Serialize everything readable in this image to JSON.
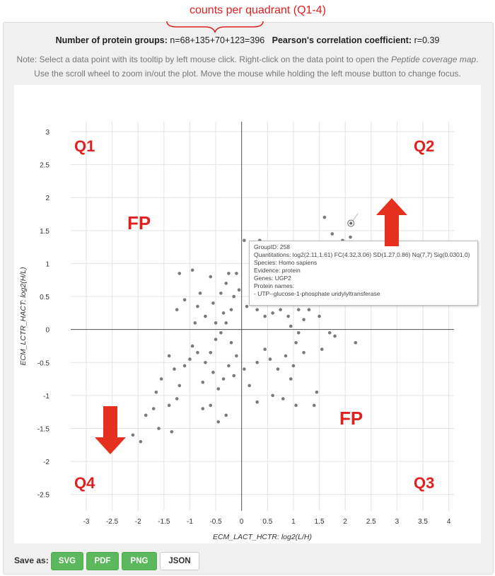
{
  "annotation": {
    "label": "counts per quadrant  (Q1-4)",
    "color": "#e02020"
  },
  "summary": {
    "groups_label": "Number of protein groups:",
    "groups_value": "n=68+135+70+123=396",
    "corr_label": "Pearson's correlation coefficient:",
    "corr_value": "r=0.39"
  },
  "note": {
    "part1": "Note: Select a data point with its tooltip by left mouse click. Right-click on the data point to open the ",
    "part2": "Peptide coverage map",
    "part3": ". Use the scroll wheel to zoom in/out the plot. Move the mouse while holding the left mouse button to change focus."
  },
  "tooltip": {
    "group": "GroupID: 258",
    "quant": "Quantitations: log2(2.11,1.61) FC(4.32,3.06) SD(1.27,0.86) Nq(7,7) Sig(0.0301,0)",
    "species": "Species: Homo sapiens",
    "evidence": "Evidence: protein",
    "genes": "Genes: UGP2",
    "names_label": "Protein names:",
    "names": "- UTP--glucose-1-phosphate uridylyltransferase"
  },
  "overlays": {
    "q1": "Q1",
    "q2": "Q2",
    "q3": "Q3",
    "q4": "Q4",
    "fp_top": "FP",
    "fp_bottom": "FP"
  },
  "save": {
    "label": "Save as:",
    "buttons": [
      "SVG",
      "PDF",
      "PNG",
      "JSON"
    ]
  },
  "chart_data": {
    "type": "scatter",
    "xlabel": "ECM_LACT_HCTR: log2(L/H)",
    "ylabel": "ECM_LCTR_HACT: log2(H/L)",
    "xlim": [
      -3.3,
      4.1
    ],
    "ylim": [
      -2.75,
      3.15
    ],
    "xticks": [
      -3,
      -2.5,
      -2,
      -1.5,
      -1,
      -0.5,
      0,
      0.5,
      1,
      1.5,
      2,
      2.5,
      3,
      3.5,
      4
    ],
    "yticks": [
      -2.5,
      -2,
      -1.5,
      -1,
      -0.5,
      0,
      0.5,
      1,
      1.5,
      2,
      2.5,
      3
    ],
    "grid": true,
    "point_color": "#7a7a7a",
    "selected_point": {
      "x": 2.11,
      "y": 1.61
    },
    "points": [
      [
        -1.95,
        -1.7
      ],
      [
        -2.1,
        -1.6
      ],
      [
        -1.6,
        -1.5
      ],
      [
        -1.35,
        -1.55
      ],
      [
        -1.85,
        -1.3
      ],
      [
        -1.7,
        -1.2
      ],
      [
        -1.4,
        -1.15
      ],
      [
        -1.25,
        -1.05
      ],
      [
        -1.65,
        -0.95
      ],
      [
        -1.55,
        -0.75
      ],
      [
        -1.2,
        -0.85
      ],
      [
        -1.3,
        -0.6
      ],
      [
        -1.1,
        -0.55
      ],
      [
        -1.4,
        -0.4
      ],
      [
        -1.0,
        -0.45
      ],
      [
        -0.85,
        -0.35
      ],
      [
        -0.95,
        -0.25
      ],
      [
        -0.7,
        -0.5
      ],
      [
        -0.55,
        -0.65
      ],
      [
        -0.75,
        -0.8
      ],
      [
        -0.45,
        -0.9
      ],
      [
        -0.35,
        -0.75
      ],
      [
        -0.6,
        -1.15
      ],
      [
        -0.3,
        -1.3
      ],
      [
        -0.45,
        -1.4
      ],
      [
        -0.75,
        -1.2
      ],
      [
        -0.6,
        -0.35
      ],
      [
        -0.5,
        -0.15
      ],
      [
        -0.4,
        -0.05
      ],
      [
        -0.3,
        0.1
      ],
      [
        -0.2,
        -0.2
      ],
      [
        -0.1,
        -0.4
      ],
      [
        -0.25,
        -0.55
      ],
      [
        -0.15,
        -0.7
      ],
      [
        0.05,
        -0.6
      ],
      [
        0.15,
        -0.85
      ],
      [
        0.3,
        -0.5
      ],
      [
        0.45,
        -0.3
      ],
      [
        0.55,
        -0.45
      ],
      [
        0.7,
        -0.6
      ],
      [
        0.85,
        -0.4
      ],
      [
        1.0,
        -0.55
      ],
      [
        0.95,
        -0.75
      ],
      [
        1.05,
        -0.2
      ],
      [
        1.2,
        -0.35
      ],
      [
        0.6,
        -1.0
      ],
      [
        0.8,
        -1.05
      ],
      [
        1.05,
        -1.15
      ],
      [
        0.3,
        -1.1
      ],
      [
        1.45,
        -0.95
      ],
      [
        1.7,
        -0.05
      ],
      [
        1.8,
        -0.1
      ],
      [
        1.55,
        -0.3
      ],
      [
        2.2,
        -0.2
      ],
      [
        1.4,
        -1.15
      ],
      [
        -1.2,
        0.85
      ],
      [
        -0.95,
        0.9
      ],
      [
        -0.6,
        0.8
      ],
      [
        -0.8,
        0.55
      ],
      [
        -0.55,
        0.4
      ],
      [
        -0.4,
        0.55
      ],
      [
        -0.3,
        0.7
      ],
      [
        -0.2,
        0.3
      ],
      [
        -0.15,
        0.5
      ],
      [
        -0.1,
        0.85
      ],
      [
        -0.05,
        0.6
      ],
      [
        -0.7,
        0.2
      ],
      [
        -0.85,
        0.35
      ],
      [
        -1.1,
        0.45
      ],
      [
        -0.5,
        0.1
      ],
      [
        -0.35,
        0.25
      ],
      [
        -0.9,
        0.1
      ],
      [
        -1.25,
        0.3
      ],
      [
        -0.25,
        0.85
      ],
      [
        0.05,
        1.35
      ],
      [
        0.35,
        1.35
      ],
      [
        0.2,
        1.2
      ],
      [
        0.45,
        1.1
      ],
      [
        0.6,
        1.05
      ],
      [
        0.4,
        0.9
      ],
      [
        0.25,
        0.8
      ],
      [
        0.55,
        0.75
      ],
      [
        0.75,
        0.85
      ],
      [
        0.9,
        0.7
      ],
      [
        1.05,
        0.9
      ],
      [
        1.2,
        0.6
      ],
      [
        1.0,
        0.55
      ],
      [
        0.8,
        0.5
      ],
      [
        0.65,
        0.45
      ],
      [
        0.5,
        0.5
      ],
      [
        0.35,
        0.55
      ],
      [
        0.2,
        0.45
      ],
      [
        0.1,
        0.35
      ],
      [
        0.3,
        0.3
      ],
      [
        0.45,
        0.2
      ],
      [
        0.6,
        0.25
      ],
      [
        0.75,
        0.3
      ],
      [
        0.9,
        0.2
      ],
      [
        1.1,
        0.3
      ],
      [
        1.3,
        0.45
      ],
      [
        1.5,
        0.55
      ],
      [
        1.6,
        0.85
      ],
      [
        1.4,
        0.95
      ],
      [
        1.25,
        1.05
      ],
      [
        1.55,
        1.1
      ],
      [
        1.7,
        1.3
      ],
      [
        1.8,
        1.0
      ],
      [
        1.65,
        0.9
      ],
      [
        1.9,
        1.15
      ],
      [
        2.0,
        0.95
      ],
      [
        1.85,
        0.8
      ],
      [
        2.05,
        0.6
      ],
      [
        2.1,
        1.4
      ],
      [
        1.95,
        1.35
      ],
      [
        1.75,
        1.45
      ],
      [
        2.2,
        1.15
      ],
      [
        2.3,
        1.25
      ],
      [
        2.05,
        1.15
      ],
      [
        1.6,
        1.7
      ],
      [
        1.3,
        0.3
      ],
      [
        1.5,
        0.2
      ],
      [
        1.2,
        0.15
      ],
      [
        0.95,
        0.05
      ],
      [
        1.1,
        -0.05
      ]
    ]
  }
}
